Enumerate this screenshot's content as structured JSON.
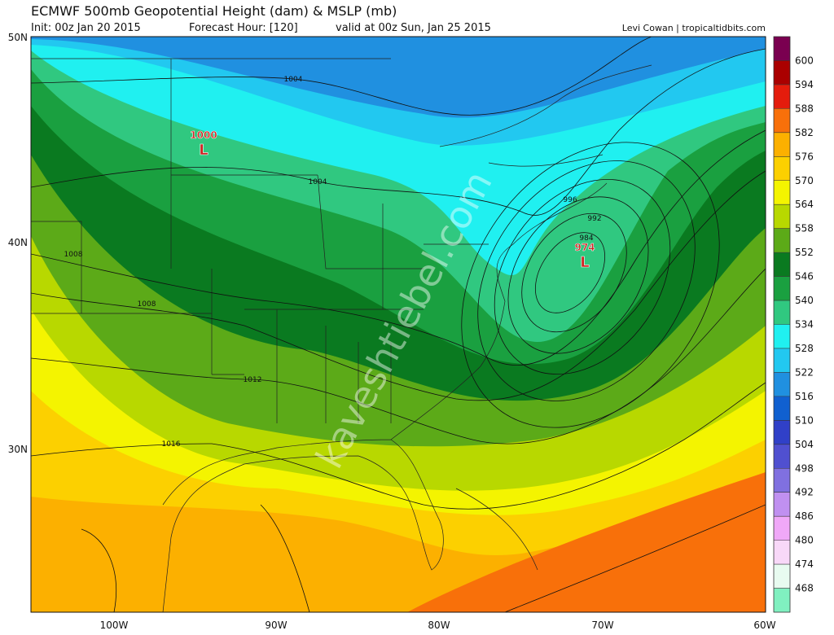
{
  "header": {
    "title": "ECMWF 500mb Geopotential Height (dam) & MSLP (mb)",
    "init": "Init: 00z Jan 20 2015",
    "forecast_hour": "Forecast Hour: [120]",
    "valid": "valid at 00z Sun, Jan 25 2015",
    "credit": "Levi Cowan | tropicaltidbits.com"
  },
  "axes": {
    "latitudes": [
      "50N",
      "40N",
      "30N"
    ],
    "longitudes": [
      "100W",
      "90W",
      "80W",
      "70W",
      "60W"
    ]
  },
  "colorbar": {
    "levels": [
      600,
      594,
      588,
      582,
      576,
      570,
      564,
      558,
      552,
      546,
      540,
      534,
      528,
      522,
      516,
      510,
      504,
      498,
      492,
      486,
      480,
      474,
      468
    ],
    "colors": [
      "#7a0050",
      "#aa0000",
      "#e41c0c",
      "#f8700a",
      "#fcb000",
      "#fcd000",
      "#f4f400",
      "#b8d800",
      "#5caa18",
      "#0a7a20",
      "#1aa040",
      "#30c880",
      "#20f0f0",
      "#22c8f0",
      "#2090e0",
      "#1060d0",
      "#3040c8",
      "#5050d0",
      "#8070e0",
      "#c090f0",
      "#f0a8f8",
      "#f8d8f8",
      "#e8fbf0",
      "#80f0c0"
    ]
  },
  "map": {
    "contour_labels": [
      1004,
      1004,
      996,
      992,
      984,
      1008,
      1008,
      1012,
      1016
    ],
    "lows": [
      {
        "pressure": 1000,
        "symbol": "L"
      },
      {
        "pressure": 974,
        "symbol": "L"
      }
    ],
    "watermark": "kaveshtiebel.com"
  }
}
